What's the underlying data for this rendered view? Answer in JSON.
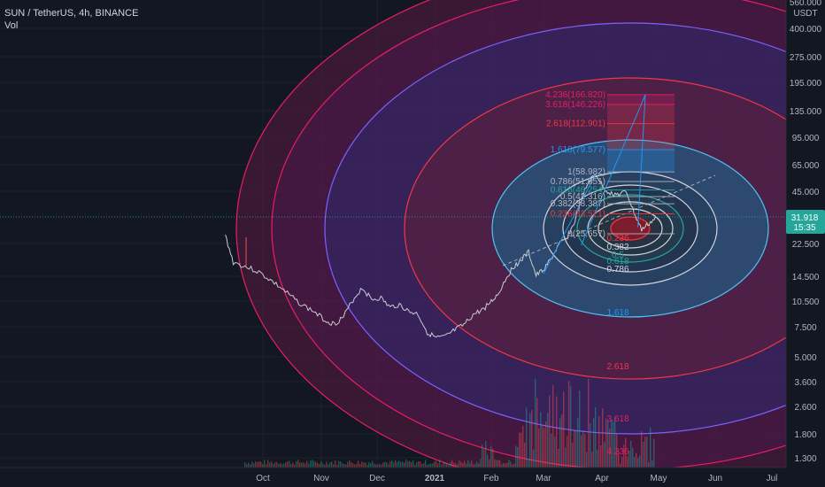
{
  "header": {
    "symbol": "SUN / TetherUS, 4h, BINANCE",
    "volume_label": "Vol"
  },
  "price_axis": {
    "unit": "USDT",
    "top_partial": "560.000",
    "ticks": [
      "400.000",
      "275.000",
      "195.000",
      "135.000",
      "95.000",
      "65.000",
      "45.000",
      "22.500",
      "14.500",
      "10.500",
      "7.500",
      "5.000",
      "3.600",
      "2.600",
      "1.800",
      "1.300"
    ],
    "last_price": "31.918",
    "countdown": "15:35"
  },
  "time_axis": {
    "labels": [
      {
        "text": "Oct",
        "bold": false
      },
      {
        "text": "Nov",
        "bold": false
      },
      {
        "text": "Dec",
        "bold": false
      },
      {
        "text": "2021",
        "bold": true
      },
      {
        "text": "Feb",
        "bold": false
      },
      {
        "text": "Mar",
        "bold": false
      },
      {
        "text": "Apr",
        "bold": false
      },
      {
        "text": "May",
        "bold": false
      },
      {
        "text": "Jun",
        "bold": false
      },
      {
        "text": "Jul",
        "bold": false
      }
    ]
  },
  "chart_data": {
    "type": "line",
    "title": "SUN / TetherUS, 4h, BINANCE",
    "y_scale": "log",
    "ylim": [
      1.2,
      560
    ],
    "x_labels": [
      "Oct",
      "Nov",
      "Dec",
      "2021",
      "Feb",
      "Mar",
      "Apr",
      "May",
      "Jun",
      "Jul"
    ],
    "series": [
      {
        "name": "SUN / TetherUS",
        "points": [
          [
            "Sep 12",
            25
          ],
          [
            "Sep 16",
            17.5
          ],
          [
            "Sep 22",
            16.5
          ],
          [
            "Sep 28",
            15.5
          ],
          [
            "Oct 4",
            14
          ],
          [
            "Oct 10",
            12.5
          ],
          [
            "Oct 16",
            11
          ],
          [
            "Oct 22",
            9.8
          ],
          [
            "Oct 28",
            9
          ],
          [
            "Nov 3",
            8
          ],
          [
            "Nov 8",
            7.6
          ],
          [
            "Nov 13",
            8.4
          ],
          [
            "Nov 18",
            10.5
          ],
          [
            "Nov 23",
            12.4
          ],
          [
            "Nov 28",
            10.6
          ],
          [
            "Dec 3",
            10.8
          ],
          [
            "Dec 8",
            9.5
          ],
          [
            "Dec 13",
            9.9
          ],
          [
            "Dec 18",
            9
          ],
          [
            "Dec 23",
            8.7
          ],
          [
            "Dec 28",
            6.8
          ],
          [
            "Jan 2",
            6.3
          ],
          [
            "Jan 7",
            6.4
          ],
          [
            "Jan 12",
            7
          ],
          [
            "Jan 17",
            7.5
          ],
          [
            "Jan 22",
            8.6
          ],
          [
            "Jan 27",
            9.2
          ],
          [
            "Feb 1",
            10.3
          ],
          [
            "Feb 5",
            11.5
          ],
          [
            "Feb 9",
            14.2
          ],
          [
            "Feb 13",
            16.5
          ],
          [
            "Feb 17",
            18
          ],
          [
            "Feb 21",
            20
          ],
          [
            "Feb 25",
            14.6
          ],
          [
            "Mar 1",
            15.8
          ],
          [
            "Mar 5",
            18.2
          ],
          [
            "Mar 9",
            22
          ],
          [
            "Mar 13",
            24
          ],
          [
            "Mar 17",
            29
          ],
          [
            "Mar 21",
            40
          ],
          [
            "Mar 25",
            52
          ],
          [
            "Mar 29",
            57
          ],
          [
            "Apr 2",
            47
          ],
          [
            "Apr 6",
            44
          ],
          [
            "Apr 10",
            43.5
          ],
          [
            "Apr 14",
            45
          ],
          [
            "Apr 18",
            34
          ],
          [
            "Apr 22",
            27
          ],
          [
            "Apr 26",
            29.5
          ],
          [
            "Apr 30",
            31.9
          ]
        ]
      }
    ],
    "fib_retracement_levels": [
      {
        "ratio": "4.236",
        "price": "166.820",
        "color": "#e91e63"
      },
      {
        "ratio": "3.618",
        "price": "146.226",
        "color": "#e91e63"
      },
      {
        "ratio": "2.618",
        "price": "112.901",
        "color": "#f23645"
      },
      {
        "ratio": "1.618",
        "price": "79.577",
        "color": "#2196f3"
      },
      {
        "ratio": "1",
        "price": "58.982",
        "color": "#b2b5be"
      },
      {
        "ratio": "0.786",
        "price": "51.851",
        "color": "#b2b5be"
      },
      {
        "ratio": "0.618",
        "price": "46.254",
        "color": "#26a69a"
      },
      {
        "ratio": "0.5",
        "price": "42.316",
        "color": "#b2b5be"
      },
      {
        "ratio": "0.382",
        "price": "38.387",
        "color": "#b2b5be"
      },
      {
        "ratio": "0.236",
        "price": "33.521",
        "color": "#f23645"
      },
      {
        "ratio": "0",
        "price": "25.657",
        "color": "#b2b5be"
      }
    ],
    "fib_circle_labels": [
      {
        "ratio": "0.236",
        "color": "#f23645"
      },
      {
        "ratio": "0.382",
        "color": "#d1d4dc"
      },
      {
        "ratio": "0.5",
        "color": "#26a69a"
      },
      {
        "ratio": "0.618",
        "color": "#26a69a"
      },
      {
        "ratio": "0.786",
        "color": "#d1d4dc"
      },
      {
        "ratio": "1.618",
        "color": "#2196f3"
      },
      {
        "ratio": "2.618",
        "color": "#f23645"
      },
      {
        "ratio": "3.618",
        "color": "#e91e63"
      },
      {
        "ratio": "4.236",
        "color": "#e91e63"
      }
    ]
  },
  "colors": {
    "background": "#131722",
    "accent_blue": "#2196f3",
    "fib_red": "#f23645",
    "fib_pink": "#e91e63",
    "last_price_badge": "#26a69a",
    "ring_fill_outer": "#4a1a3a",
    "ring_fill_mid": "#2a2a6a",
    "ring_fill_inner": "#1f4e78"
  }
}
